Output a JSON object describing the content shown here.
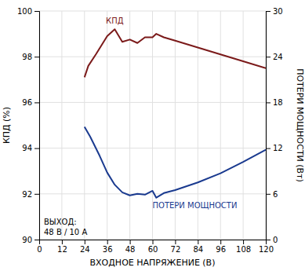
{
  "chart_data": {
    "type": "line",
    "xlabel": "ВХОДНОЕ НАПРЯЖЕНИЕ (В)",
    "ylabel": "КПД (%)",
    "y2label": "ПОТЕРИ МОЩНОСТИ (Вт)",
    "xlim": [
      0,
      120
    ],
    "xticks": [
      0,
      12,
      24,
      36,
      48,
      60,
      72,
      84,
      96,
      108,
      120
    ],
    "ylim": [
      90,
      100
    ],
    "yticks": [
      90,
      92,
      94,
      96,
      98,
      100
    ],
    "y2lim": [
      0,
      30
    ],
    "y2ticks": [
      0,
      6,
      12,
      18,
      24,
      30
    ],
    "grid": true,
    "series": [
      {
        "name": "КПД",
        "color": "#7b1a1a",
        "x": [
          24,
          26,
          30,
          36,
          40,
          44,
          48,
          52,
          56,
          60,
          62,
          66,
          72,
          84,
          96,
          108,
          120
        ],
        "values": [
          97.1,
          97.6,
          98.1,
          98.9,
          99.2,
          98.65,
          98.75,
          98.6,
          98.85,
          98.85,
          99.0,
          98.85,
          98.7,
          98.4,
          98.1,
          97.8,
          97.5
        ]
      },
      {
        "name": "ПОТЕРИ МОЩНОСТИ",
        "color": "#1a3a8f",
        "axis": "y2",
        "x": [
          24,
          27,
          32,
          36,
          40,
          44,
          48,
          52,
          56,
          60,
          62,
          66,
          72,
          84,
          96,
          108,
          120
        ],
        "values": [
          14.8,
          13.5,
          11.0,
          8.8,
          7.2,
          6.2,
          5.8,
          6.0,
          5.9,
          6.4,
          5.5,
          6.1,
          6.5,
          7.5,
          8.7,
          10.2,
          11.8
        ]
      }
    ],
    "annotations": [
      "ВЫХОД:",
      "48 В / 10 А"
    ]
  }
}
